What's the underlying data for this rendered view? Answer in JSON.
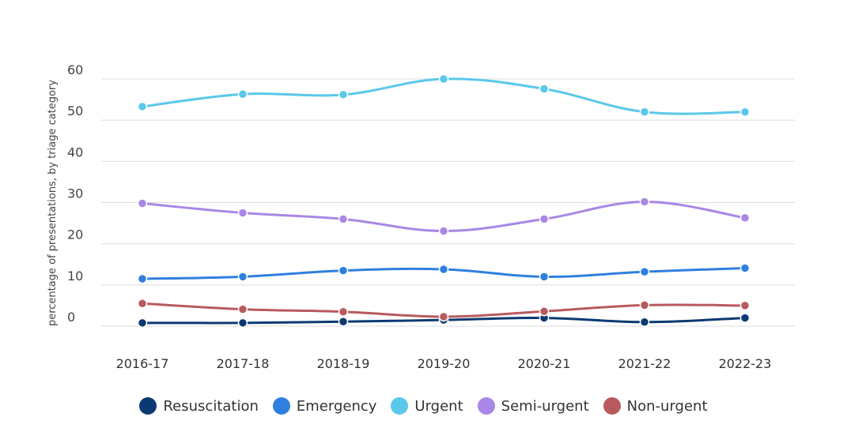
{
  "chart_data": {
    "type": "line",
    "ylabel": "percentage of presentations, by triage category",
    "xlabel": "",
    "x": [
      "2016-17",
      "2017-18",
      "2018-19",
      "2019-20",
      "2020-21",
      "2021-22",
      "2022-23"
    ],
    "ylim": [
      0,
      60
    ],
    "yticks": [
      0,
      10,
      20,
      30,
      40,
      50,
      60
    ],
    "grid": true,
    "legend": "bottom",
    "series": [
      {
        "name": "Resuscitation",
        "color": "#0b3a73",
        "values": [
          0.8,
          0.8,
          1.1,
          1.5,
          2.0,
          1.0,
          2.0
        ]
      },
      {
        "name": "Emergency",
        "color": "#2f7fe0",
        "values": [
          11.5,
          12.0,
          13.5,
          13.8,
          12.0,
          13.2,
          14.1
        ]
      },
      {
        "name": "Urgent",
        "color": "#5ac8ea",
        "values": [
          53.3,
          56.3,
          56.2,
          60.0,
          57.6,
          52.0,
          52.0
        ]
      },
      {
        "name": "Semi-urgent",
        "color": "#a987e6",
        "values": [
          29.8,
          27.5,
          26.0,
          23.1,
          26.0,
          30.2,
          26.3
        ]
      },
      {
        "name": "Non-urgent",
        "color": "#b85a5d",
        "values": [
          5.5,
          4.1,
          3.5,
          2.3,
          3.6,
          5.1,
          5.0
        ]
      }
    ]
  }
}
